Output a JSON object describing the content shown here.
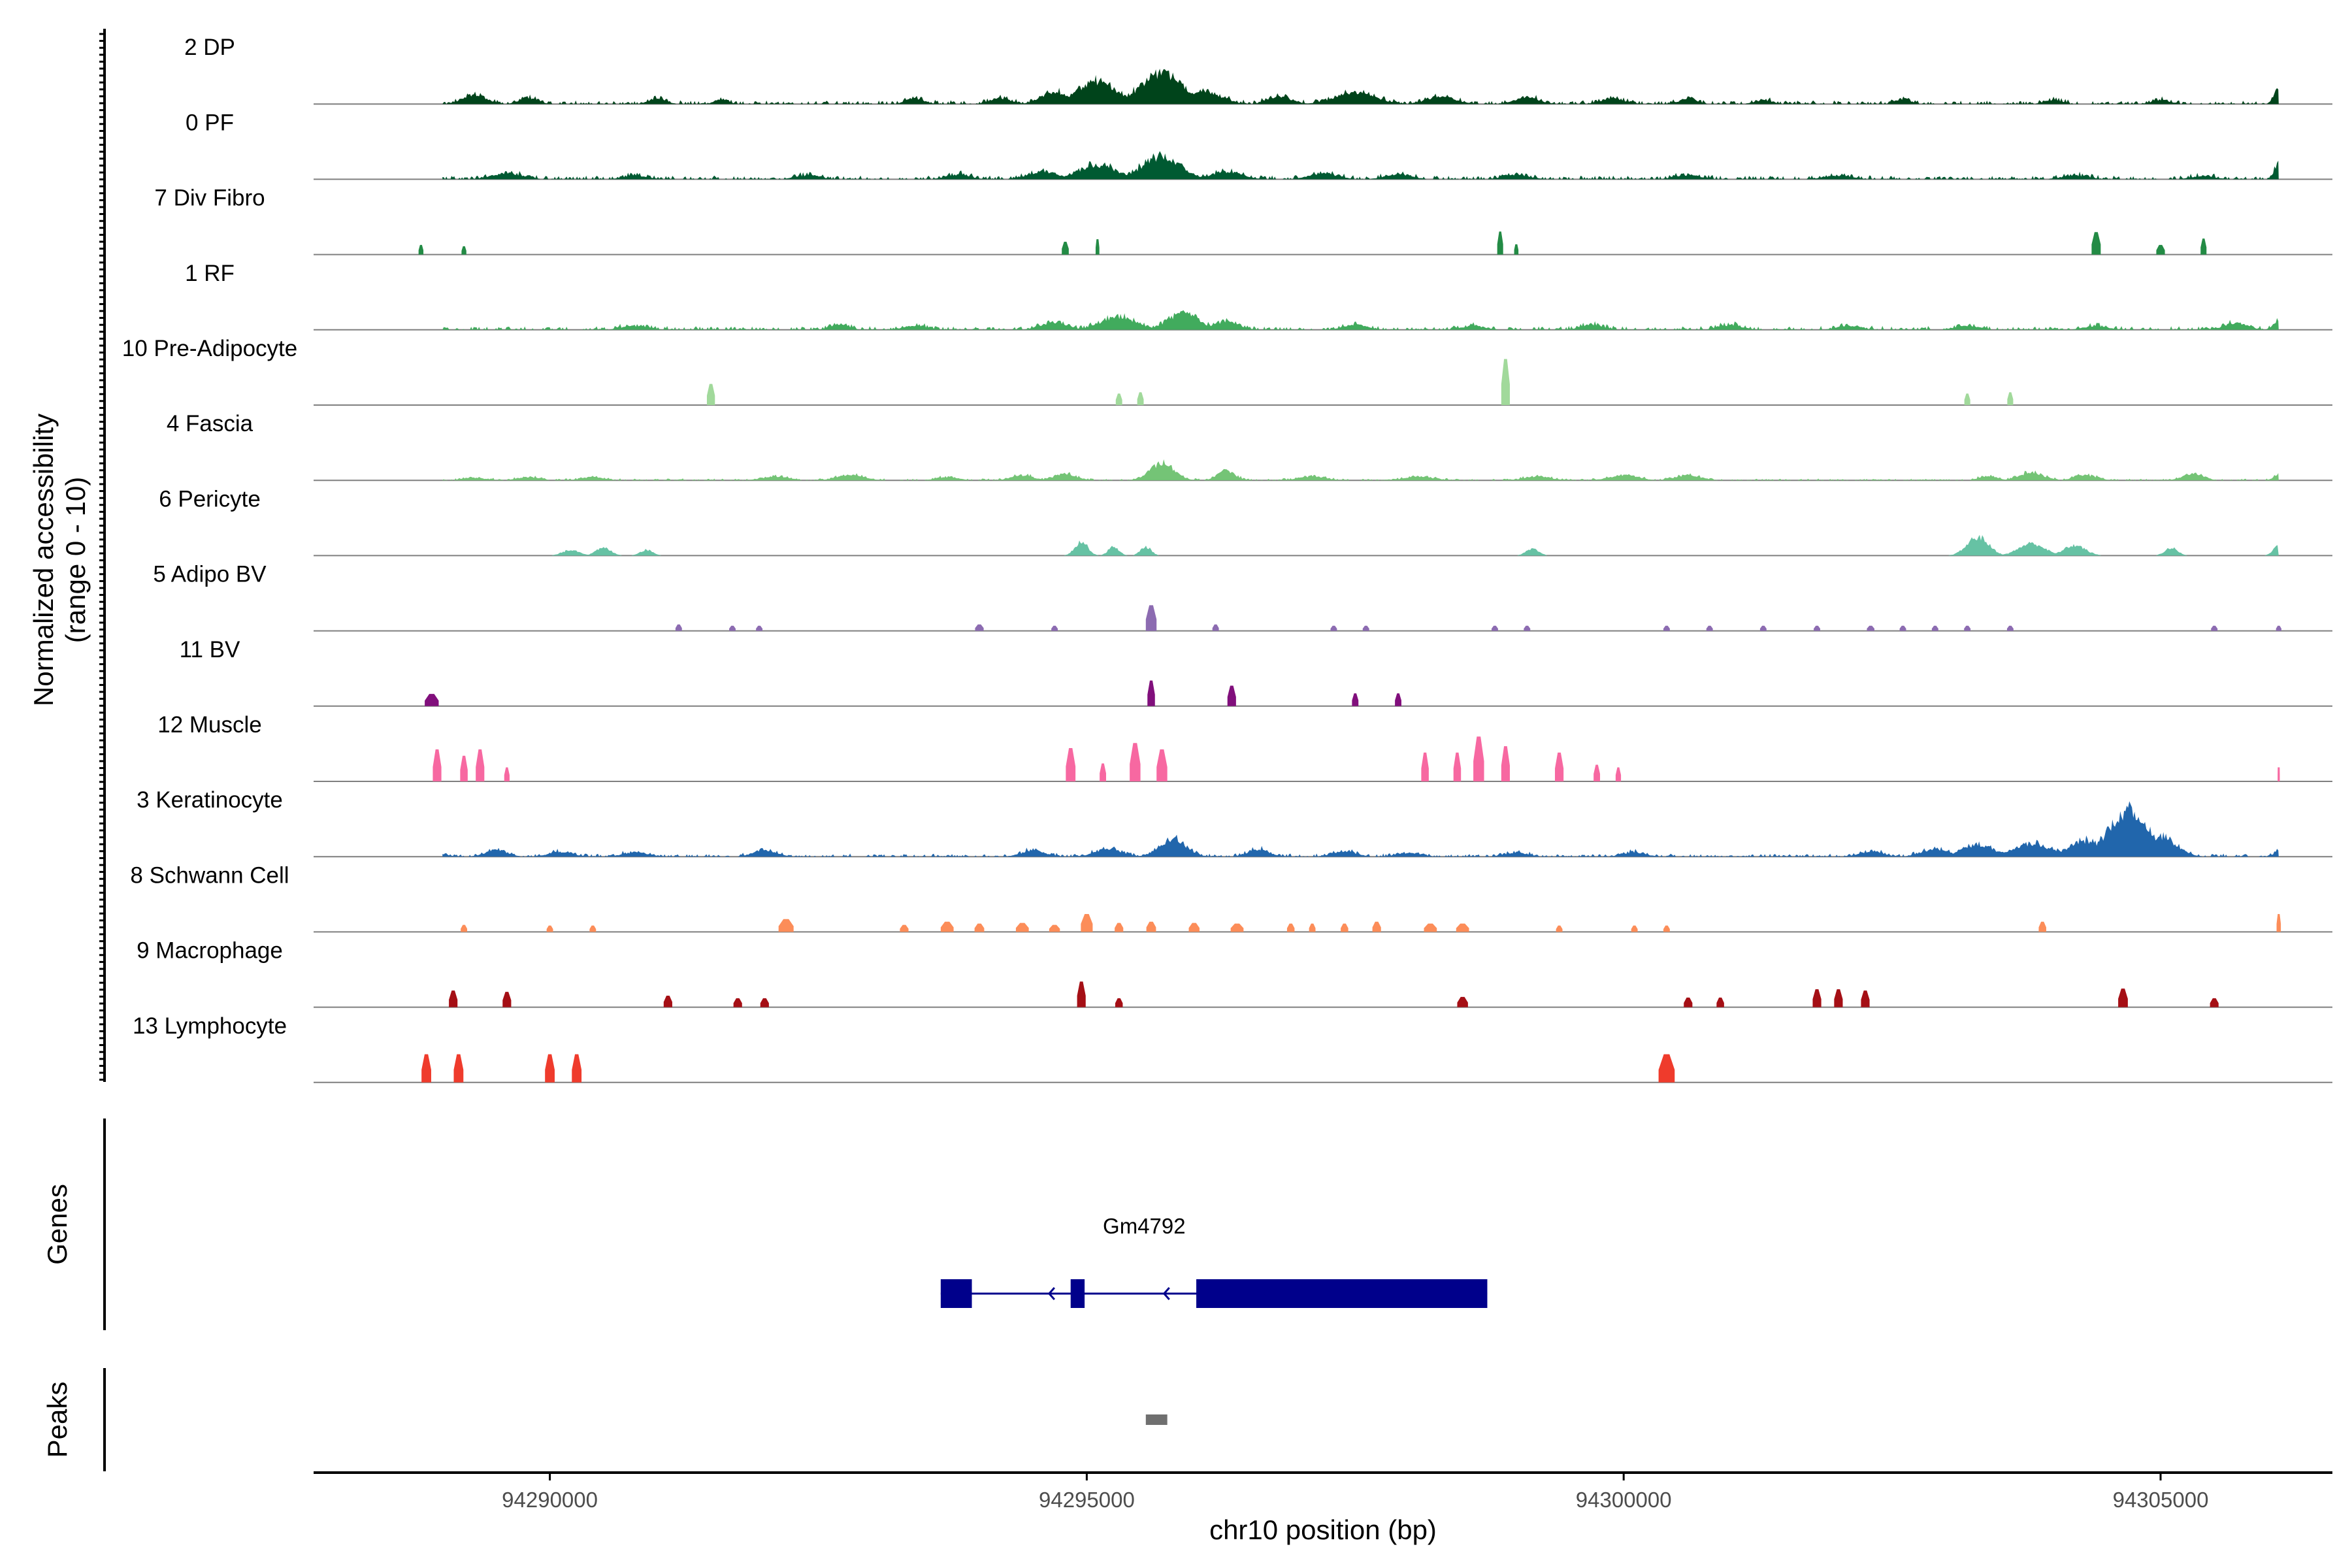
{
  "chart_data": {
    "type": "area",
    "title": "",
    "ylabel_line1": "Normalized accessibility",
    "ylabel_line2": "(range 0 - 10)",
    "xlabel": "chr10 position (bp)",
    "ylim": [
      0,
      10
    ],
    "xlim": [
      94287800,
      94306600
    ],
    "xticks": [
      94290000,
      94295000,
      94300000,
      94305000
    ],
    "xtick_labels": [
      "94290000",
      "94295000",
      "94300000",
      "94305000"
    ],
    "genes_label": "Genes",
    "peaks_label": "Peaks",
    "tracks": [
      {
        "name": "2 DP",
        "color": "#00441b",
        "mode": "cont",
        "base": 0.25,
        "noise": 0.6,
        "peaks": [
          [
            94289300,
            1.4,
            110
          ],
          [
            94289800,
            1.0,
            80
          ],
          [
            94291000,
            0.8,
            80
          ],
          [
            94291600,
            0.8,
            60
          ],
          [
            94293400,
            0.9,
            80
          ],
          [
            94294200,
            0.9,
            90
          ],
          [
            94294700,
            1.8,
            120
          ],
          [
            94295100,
            3.4,
            180
          ],
          [
            94295700,
            4.8,
            190
          ],
          [
            94296100,
            2.0,
            150
          ],
          [
            94296800,
            1.1,
            110
          ],
          [
            94297500,
            1.8,
            180
          ],
          [
            94298300,
            1.2,
            130
          ],
          [
            94299100,
            1.0,
            110
          ],
          [
            94299900,
            0.8,
            110
          ],
          [
            94300600,
            0.8,
            80
          ],
          [
            94301300,
            0.6,
            80
          ],
          [
            94302600,
            0.8,
            70
          ],
          [
            94304000,
            0.6,
            80
          ],
          [
            94305000,
            0.6,
            80
          ],
          [
            94306100,
            2.4,
            40
          ]
        ]
      },
      {
        "name": "0 PF",
        "color": "#005a32",
        "mode": "cont",
        "base": 0.3,
        "noise": 0.5,
        "peaks": [
          [
            94289600,
            0.9,
            140
          ],
          [
            94290800,
            0.6,
            110
          ],
          [
            94292400,
            0.6,
            110
          ],
          [
            94293800,
            0.7,
            110
          ],
          [
            94294600,
            1.2,
            140
          ],
          [
            94295100,
            2.2,
            180
          ],
          [
            94295700,
            3.6,
            170
          ],
          [
            94296300,
            1.2,
            140
          ],
          [
            94297200,
            0.9,
            130
          ],
          [
            94297900,
            0.8,
            120
          ],
          [
            94299000,
            0.7,
            120
          ],
          [
            94300600,
            0.6,
            120
          ],
          [
            94302000,
            0.6,
            120
          ],
          [
            94304200,
            0.6,
            120
          ],
          [
            94305400,
            0.5,
            110
          ],
          [
            94306100,
            2.6,
            40
          ]
        ]
      },
      {
        "name": "7 Div Fibro",
        "color": "#238b45",
        "mode": "blocks",
        "peaks": [
          [
            94288800,
            1.5,
            45
          ],
          [
            94289200,
            1.3,
            45
          ],
          [
            94294800,
            2.0,
            65
          ],
          [
            94295100,
            2.4,
            35
          ],
          [
            94298850,
            3.6,
            55
          ],
          [
            94299000,
            1.6,
            40
          ],
          [
            94304400,
            3.5,
            85
          ],
          [
            94305000,
            1.5,
            80
          ],
          [
            94305400,
            2.5,
            55
          ]
        ]
      },
      {
        "name": "1 RF",
        "color": "#41ab5d",
        "mode": "cont",
        "base": 0.25,
        "noise": 0.6,
        "peaks": [
          [
            94290800,
            0.6,
            120
          ],
          [
            94292700,
            0.9,
            80
          ],
          [
            94293400,
            0.6,
            110
          ],
          [
            94294700,
            1.2,
            120
          ],
          [
            94295300,
            2.0,
            160
          ],
          [
            94295900,
            2.6,
            140
          ],
          [
            94296300,
            1.3,
            110
          ],
          [
            94297500,
            0.8,
            110
          ],
          [
            94298600,
            0.6,
            110
          ],
          [
            94299700,
            0.8,
            100
          ],
          [
            94301000,
            0.7,
            110
          ],
          [
            94302100,
            0.6,
            110
          ],
          [
            94303200,
            0.6,
            110
          ],
          [
            94304400,
            0.6,
            110
          ],
          [
            94305700,
            1.0,
            110
          ],
          [
            94306100,
            1.3,
            50
          ]
        ]
      },
      {
        "name": "10 Pre-Adipocyte",
        "color": "#a1d99b",
        "mode": "blocks",
        "peaks": [
          [
            94291500,
            3.3,
            75
          ],
          [
            94295300,
            1.8,
            60
          ],
          [
            94295500,
            2.0,
            60
          ],
          [
            94298900,
            7.2,
            80
          ],
          [
            94303200,
            1.8,
            55
          ],
          [
            94303600,
            2.0,
            55
          ]
        ]
      },
      {
        "name": "4 Fascia",
        "color": "#74c476",
        "mode": "cont",
        "base": 0.15,
        "noise": 0.5,
        "peaks": [
          [
            94289300,
            0.4,
            100
          ],
          [
            94289800,
            0.5,
            100
          ],
          [
            94290400,
            0.5,
            100
          ],
          [
            94292100,
            0.6,
            120
          ],
          [
            94292800,
            0.8,
            120
          ],
          [
            94293700,
            0.5,
            100
          ],
          [
            94294400,
            0.8,
            100
          ],
          [
            94294800,
            1.0,
            100
          ],
          [
            94295700,
            2.6,
            110
          ],
          [
            94296300,
            1.5,
            80
          ],
          [
            94297100,
            0.6,
            120
          ],
          [
            94298100,
            0.6,
            120
          ],
          [
            94299200,
            0.6,
            120
          ],
          [
            94300000,
            0.8,
            130
          ],
          [
            94300600,
            0.8,
            110
          ],
          [
            94303400,
            0.7,
            80
          ],
          [
            94303800,
            1.2,
            110
          ],
          [
            94304300,
            0.8,
            100
          ],
          [
            94305300,
            1.1,
            90
          ],
          [
            94306100,
            0.8,
            50
          ]
        ]
      },
      {
        "name": "6 Pericyte",
        "color": "#66c2a4",
        "mode": "sparse",
        "noise": 0.4,
        "peaks": [
          [
            94290200,
            0.9,
            80
          ],
          [
            94290500,
            1.2,
            70
          ],
          [
            94290900,
            0.9,
            60
          ],
          [
            94294950,
            2.2,
            60
          ],
          [
            94295250,
            1.4,
            50
          ],
          [
            94295550,
            1.4,
            50
          ],
          [
            94299150,
            1.0,
            60
          ],
          [
            94303300,
            2.9,
            100
          ],
          [
            94303800,
            1.9,
            120
          ],
          [
            94304200,
            1.6,
            100
          ],
          [
            94305100,
            1.2,
            60
          ],
          [
            94306100,
            1.6,
            50
          ]
        ]
      },
      {
        "name": "5 Adipo BV",
        "color": "#8c6bb1",
        "mode": "blocks",
        "peaks": [
          [
            94291200,
            1.0,
            60
          ],
          [
            94291700,
            0.8,
            60
          ],
          [
            94291950,
            0.8,
            60
          ],
          [
            94294000,
            1.0,
            80
          ],
          [
            94294700,
            0.8,
            60
          ],
          [
            94295600,
            4.0,
            100
          ],
          [
            94296200,
            1.0,
            60
          ],
          [
            94297300,
            0.8,
            60
          ],
          [
            94297600,
            0.8,
            60
          ],
          [
            94298800,
            0.8,
            60
          ],
          [
            94299100,
            0.8,
            60
          ],
          [
            94300400,
            0.8,
            60
          ],
          [
            94300800,
            0.8,
            60
          ],
          [
            94301300,
            0.8,
            60
          ],
          [
            94301800,
            0.8,
            60
          ],
          [
            94302300,
            0.8,
            70
          ],
          [
            94302600,
            0.8,
            60
          ],
          [
            94302900,
            0.8,
            60
          ],
          [
            94303200,
            0.8,
            60
          ],
          [
            94303600,
            0.8,
            60
          ],
          [
            94305500,
            0.8,
            60
          ],
          [
            94306100,
            0.8,
            50
          ]
        ]
      },
      {
        "name": "11 BV",
        "color": "#810f7c",
        "mode": "blocks",
        "peaks": [
          [
            94288900,
            1.9,
            130
          ],
          [
            94295600,
            4.0,
            70
          ],
          [
            94296350,
            3.2,
            80
          ],
          [
            94297500,
            2.0,
            60
          ],
          [
            94297900,
            2.0,
            60
          ]
        ]
      },
      {
        "name": "12 Muscle",
        "color": "#f768a1",
        "mode": "blocks",
        "peaks": [
          [
            94288950,
            5.0,
            80
          ],
          [
            94289200,
            4.0,
            70
          ],
          [
            94289350,
            5.0,
            80
          ],
          [
            94289600,
            2.2,
            50
          ],
          [
            94294850,
            5.2,
            90
          ],
          [
            94295150,
            2.8,
            60
          ],
          [
            94295450,
            6.0,
            100
          ],
          [
            94295700,
            5.0,
            100
          ],
          [
            94298150,
            4.5,
            70
          ],
          [
            94298450,
            4.5,
            70
          ],
          [
            94298650,
            7.0,
            100
          ],
          [
            94298900,
            5.5,
            80
          ],
          [
            94299400,
            4.5,
            80
          ],
          [
            94299750,
            2.6,
            60
          ],
          [
            94299950,
            2.2,
            50
          ],
          [
            94306100,
            2.2,
            20
          ]
        ]
      },
      {
        "name": "3 Keratinocyte",
        "color": "#2166ac",
        "mode": "cont",
        "base": 0.2,
        "noise": 0.6,
        "peaks": [
          [
            94288900,
            0.8,
            100
          ],
          [
            94289500,
            1.0,
            100
          ],
          [
            94290100,
            0.7,
            110
          ],
          [
            94290800,
            0.7,
            110
          ],
          [
            94292000,
            0.9,
            110
          ],
          [
            94294500,
            0.9,
            110
          ],
          [
            94295200,
            1.2,
            120
          ],
          [
            94295800,
            2.8,
            120
          ],
          [
            94296600,
            1.1,
            100
          ],
          [
            94297400,
            0.8,
            110
          ],
          [
            94298000,
            0.6,
            110
          ],
          [
            94299000,
            0.6,
            110
          ],
          [
            94300100,
            0.7,
            100
          ],
          [
            94302300,
            0.8,
            110
          ],
          [
            94302900,
            1.1,
            120
          ],
          [
            94303300,
            1.8,
            150
          ],
          [
            94303800,
            2.0,
            180
          ],
          [
            94304300,
            2.4,
            160
          ],
          [
            94304700,
            7.2,
            180
          ],
          [
            94305000,
            3.2,
            140
          ],
          [
            94306100,
            1.0,
            40
          ]
        ]
      },
      {
        "name": "8 Schwann Cell",
        "color": "#fc8d59",
        "mode": "blocks",
        "peaks": [
          [
            94289200,
            1.1,
            60
          ],
          [
            94290000,
            1.0,
            60
          ],
          [
            94290400,
            1.0,
            60
          ],
          [
            94292200,
            2.0,
            140
          ],
          [
            94293300,
            1.1,
            80
          ],
          [
            94293700,
            1.6,
            120
          ],
          [
            94294000,
            1.3,
            90
          ],
          [
            94294400,
            1.4,
            120
          ],
          [
            94294700,
            1.1,
            100
          ],
          [
            94295000,
            2.8,
            110
          ],
          [
            94295300,
            1.4,
            80
          ],
          [
            94295600,
            1.6,
            90
          ],
          [
            94296000,
            1.4,
            100
          ],
          [
            94296400,
            1.3,
            120
          ],
          [
            94296900,
            1.3,
            70
          ],
          [
            94297100,
            1.3,
            60
          ],
          [
            94297400,
            1.3,
            70
          ],
          [
            94297700,
            1.6,
            80
          ],
          [
            94298200,
            1.3,
            120
          ],
          [
            94298500,
            1.3,
            120
          ],
          [
            94299400,
            1.0,
            60
          ],
          [
            94300100,
            1.0,
            60
          ],
          [
            94300400,
            1.0,
            60
          ],
          [
            94303900,
            1.6,
            70
          ],
          [
            94306100,
            2.8,
            40
          ]
        ]
      },
      {
        "name": "9 Macrophage",
        "color": "#a50f15",
        "mode": "blocks",
        "peaks": [
          [
            94289100,
            2.6,
            80
          ],
          [
            94289600,
            2.4,
            80
          ],
          [
            94291100,
            1.8,
            80
          ],
          [
            94291750,
            1.4,
            80
          ],
          [
            94292000,
            1.4,
            80
          ],
          [
            94294950,
            4.0,
            80
          ],
          [
            94295300,
            1.4,
            70
          ],
          [
            94298500,
            1.6,
            100
          ],
          [
            94300600,
            1.5,
            80
          ],
          [
            94300900,
            1.5,
            70
          ],
          [
            94301800,
            2.8,
            80
          ],
          [
            94302000,
            2.8,
            80
          ],
          [
            94302250,
            2.6,
            80
          ],
          [
            94304650,
            2.9,
            90
          ],
          [
            94305500,
            1.4,
            80
          ]
        ]
      },
      {
        "name": "13 Lymphocyte",
        "color": "#ef3b2c",
        "mode": "blocks",
        "peaks": [
          [
            94288850,
            4.4,
            90
          ],
          [
            94289150,
            4.4,
            90
          ],
          [
            94290000,
            4.4,
            90
          ],
          [
            94290250,
            4.4,
            90
          ],
          [
            94300400,
            4.4,
            150
          ]
        ]
      }
    ],
    "gene": {
      "name": "Gm4792",
      "strand": "-",
      "start": 94293640,
      "end": 94298730,
      "exons": [
        [
          94293640,
          94293930
        ],
        [
          94294850,
          94294980
        ],
        [
          94296020,
          94298730
        ]
      ]
    },
    "peaks": [
      [
        94295550,
        94295750
      ]
    ]
  }
}
